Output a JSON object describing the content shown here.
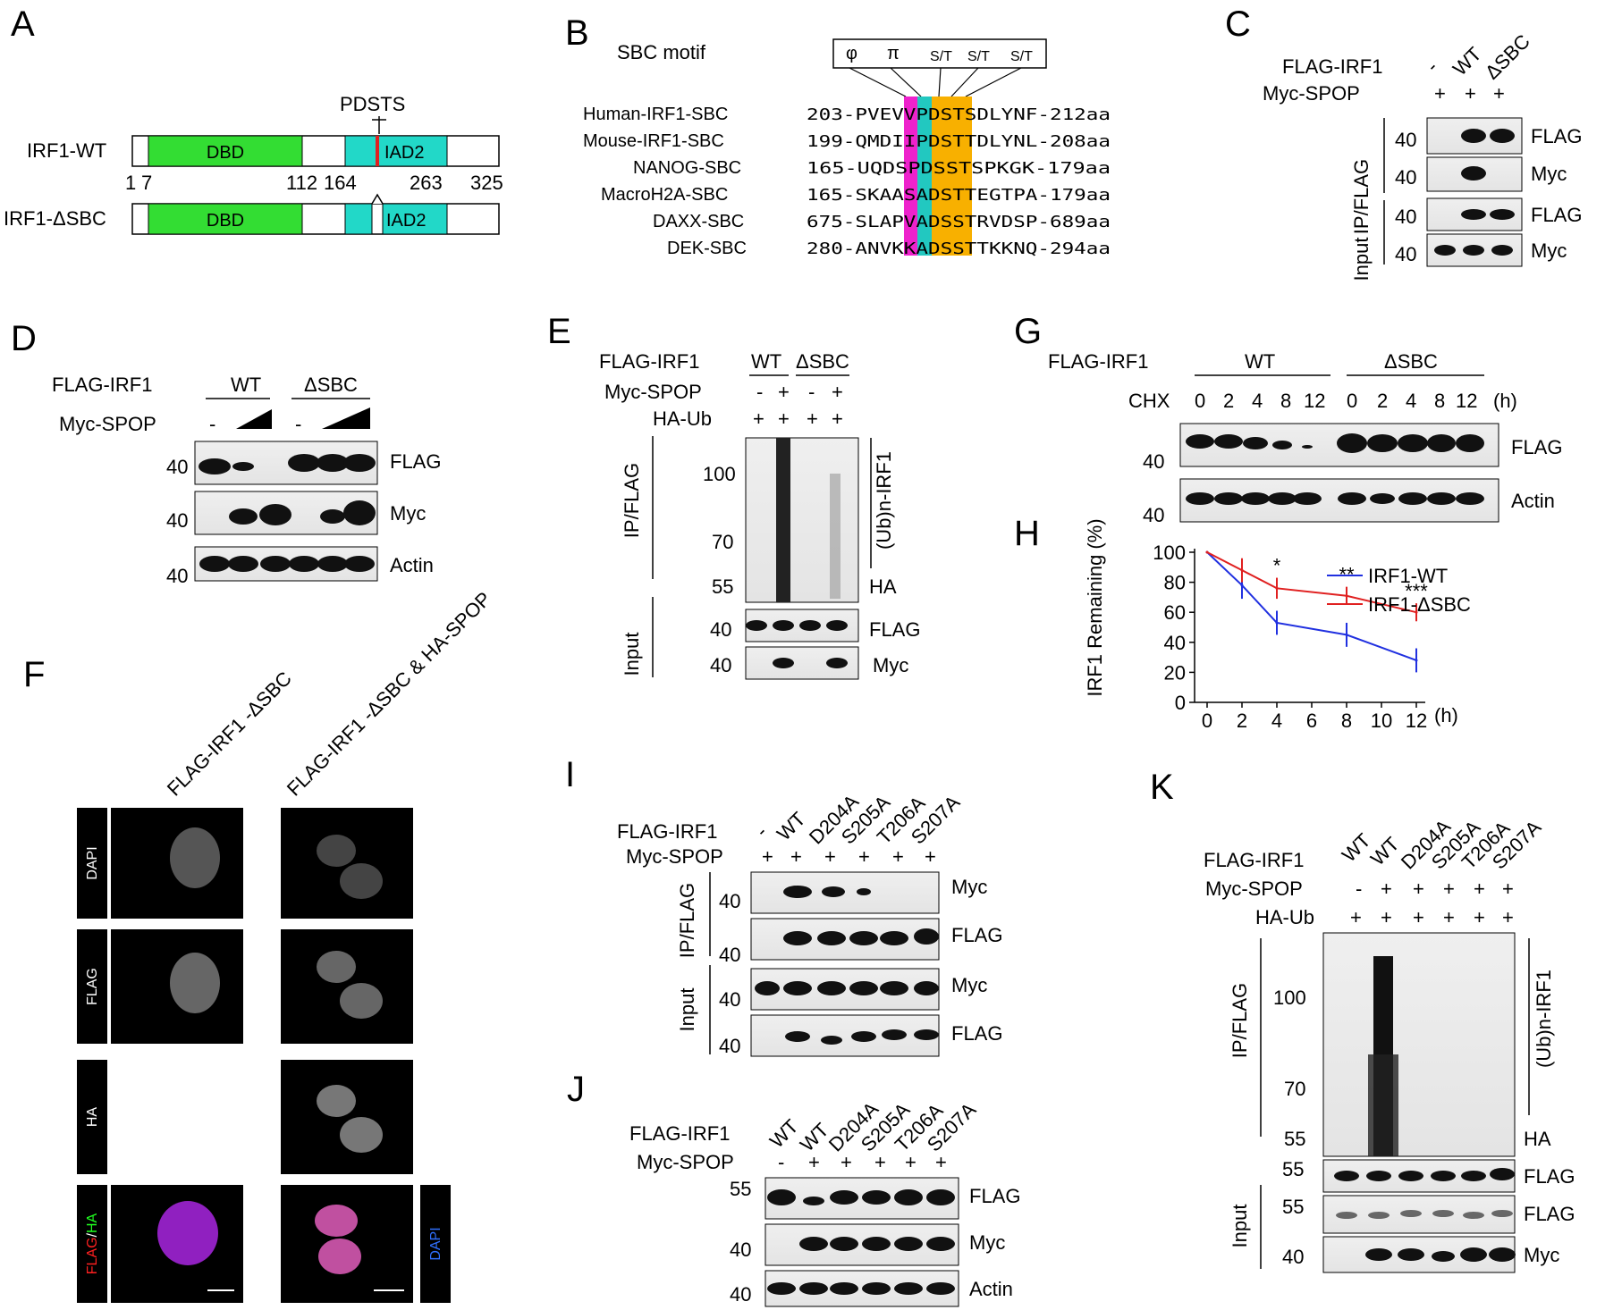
{
  "panels": {
    "A": "A",
    "B": "B",
    "C": "C",
    "D": "D",
    "E": "E",
    "F": "F",
    "G": "G",
    "H": "H",
    "I": "I",
    "J": "J",
    "K": "K"
  },
  "colors": {
    "dbd": "#33dd33",
    "iad2": "#22d8c8",
    "pink": "#ee22cc",
    "teal": "#22c8c0",
    "orange": "#f8b000",
    "red": "#e02020",
    "blue": "#2030e0"
  },
  "panelA": {
    "pdsts": "PDSTS",
    "wt_name": "IRF1-WT",
    "dsbc_name": "IRF1-ΔSBC",
    "dbd": "DBD",
    "iad2": "IAD2",
    "positions": [
      "1",
      "7",
      "112",
      "164",
      "263",
      "325"
    ]
  },
  "panelB": {
    "motif_title": "SBC motif",
    "motif": [
      "φ",
      "π",
      "S/T",
      "S/T",
      "S/T"
    ],
    "rows": [
      {
        "name": "Human-IRF1-SBC",
        "seq": "203-PVEVVPDSTSDLYNF-212aa"
      },
      {
        "name": "Mouse-IRF1-SBC",
        "seq": "199-QMDIIPDSTTDLYNL-208aa"
      },
      {
        "name": "NANOG-SBC",
        "seq": "165-UQDSPDSSTSPKGK-179aa"
      },
      {
        "name": "MacroH2A-SBC",
        "seq": "165-SKAASADSTTEGTPA-179aa"
      },
      {
        "name": "DAXX-SBC",
        "seq": "675-SLAPVADSSTRVDSP-689aa"
      },
      {
        "name": "DEK-SBC",
        "seq": "280-ANVKKADSSTTKKNQ-294aa"
      }
    ]
  },
  "panelC": {
    "lanes": [
      "-",
      "WT",
      "ΔSBC"
    ],
    "rows": [
      {
        "label": "FLAG-IRF1"
      },
      {
        "label": "Myc-SPOP",
        "vals": [
          "+",
          "+",
          "+"
        ]
      }
    ],
    "side": [
      "IP/FLAG",
      "Input"
    ],
    "blots": [
      "FLAG",
      "Myc",
      "FLAG",
      "Myc"
    ],
    "mw": [
      "40",
      "40",
      "40",
      "40"
    ]
  },
  "panelD": {
    "flag_label": "FLAG-IRF1",
    "groups": [
      "WT",
      "ΔSBC"
    ],
    "spop_label": "Myc-SPOP",
    "minus": "-",
    "blots": [
      "FLAG",
      "Myc",
      "Actin"
    ],
    "mw": [
      "40",
      "40",
      "40"
    ]
  },
  "panelE": {
    "rows": [
      {
        "label": "FLAG-IRF1",
        "vals": [
          "WT",
          "ΔSBC"
        ]
      },
      {
        "label": "Myc-SPOP",
        "vals": [
          "-",
          "+",
          "-",
          "+"
        ]
      },
      {
        "label": "HA-Ub",
        "vals": [
          "+",
          "+",
          "+",
          "+"
        ]
      }
    ],
    "side": [
      "IP/FLAG",
      "Input"
    ],
    "ub": "(Ub)n-IRF1",
    "ha": "HA",
    "mw_ip": [
      "100",
      "70",
      "55"
    ],
    "blots": [
      "FLAG",
      "Myc"
    ],
    "mw": [
      "40",
      "40"
    ]
  },
  "panelF": {
    "cols": [
      "FLAG-IRF1 -ΔSBC",
      "FLAG-IRF1 -ΔSBC & HA-SPOP"
    ],
    "rows": [
      "DAPI",
      "FLAG",
      "HA"
    ],
    "merge": [
      "FLAG",
      "/",
      "HA"
    ],
    "dapi": "DAPI"
  },
  "panelG": {
    "flag_label": "FLAG-IRF1",
    "groups": [
      "WT",
      "ΔSBC"
    ],
    "chx": "CHX",
    "times": [
      "0",
      "2",
      "4",
      "8",
      "12",
      "0",
      "2",
      "4",
      "8",
      "12"
    ],
    "unit": "(h)",
    "blots": [
      "FLAG",
      "Actin"
    ],
    "mw": [
      "40",
      "40"
    ]
  },
  "chart_data": {
    "type": "line",
    "ylabel": "IRF1 Remaining (%)",
    "xlabel": "(h)",
    "x_ticks": [
      "0",
      "2",
      "4",
      "6",
      "8",
      "10",
      "12"
    ],
    "y_ticks": [
      "0",
      "20",
      "40",
      "60",
      "80",
      "100"
    ],
    "xlim": [
      0,
      12
    ],
    "ylim": [
      0,
      100
    ],
    "series": [
      {
        "name": "IRF1-WT",
        "color": "#2030e0",
        "x": [
          0,
          2,
          4,
          8,
          12
        ],
        "y": [
          100,
          78,
          53,
          45,
          28
        ],
        "err": [
          0,
          9,
          8,
          8,
          8
        ]
      },
      {
        "name": "IRF1-ΔSBC",
        "color": "#e02020",
        "x": [
          0,
          2,
          4,
          8,
          12
        ],
        "y": [
          100,
          88,
          76,
          71,
          60
        ],
        "err": [
          0,
          8,
          7,
          6,
          6
        ]
      }
    ],
    "annotations": [
      {
        "x": 4,
        "text": "*"
      },
      {
        "x": 8,
        "text": "**"
      },
      {
        "x": 12,
        "text": "***"
      }
    ],
    "legend": "top-right"
  },
  "panelI": {
    "lanes": [
      "-",
      "WT",
      "D204A",
      "S205A",
      "T206A",
      "S207A"
    ],
    "rows": [
      {
        "label": "FLAG-IRF1"
      },
      {
        "label": "Myc-SPOP",
        "vals": [
          "+",
          "+",
          "+",
          "+",
          "+",
          "+"
        ]
      }
    ],
    "side": [
      "IP/FLAG",
      "Input"
    ],
    "blots": [
      "Myc",
      "FLAG",
      "Myc",
      "FLAG"
    ],
    "mw": [
      "40",
      "40",
      "40",
      "40"
    ]
  },
  "panelJ": {
    "lanes": [
      "WT",
      "WT",
      "D204A",
      "S205A",
      "T206A",
      "S207A"
    ],
    "rows": [
      {
        "label": "FLAG-IRF1"
      },
      {
        "label": "Myc-SPOP",
        "vals": [
          "-",
          "+",
          "+",
          "+",
          "+",
          "+"
        ]
      }
    ],
    "blots": [
      "FLAG",
      "Myc",
      "Actin"
    ],
    "mw": [
      "55",
      "40",
      "40"
    ]
  },
  "panelK": {
    "lanes": [
      "WT",
      "WT",
      "D204A",
      "S205A",
      "T206A",
      "S207A"
    ],
    "rows": [
      {
        "label": "FLAG-IRF1"
      },
      {
        "label": "Myc-SPOP",
        "vals": [
          "-",
          "+",
          "+",
          "+",
          "+",
          "+"
        ]
      },
      {
        "label": "HA-Ub",
        "vals": [
          "+",
          "+",
          "+",
          "+",
          "+",
          "+"
        ]
      }
    ],
    "side": [
      "IP/FLAG",
      "Input"
    ],
    "ub": "(Ub)n-IRF1",
    "ha": "HA",
    "mw_ip": [
      "100",
      "70",
      "55"
    ],
    "blots": [
      "FLAG",
      "FLAG",
      "Myc"
    ],
    "mw": [
      "55",
      "55",
      "40"
    ]
  }
}
